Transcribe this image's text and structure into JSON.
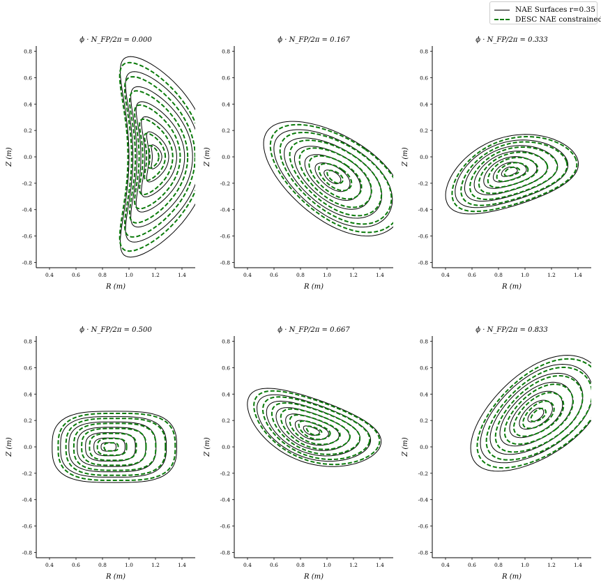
{
  "legend": {
    "placement": "top-right",
    "items": [
      {
        "label": "NAE Surfaces r=0.35",
        "color": "#000000",
        "style": "solid"
      },
      {
        "label": "DESC NAE constrained",
        "color": "#007a00",
        "style": "dashed"
      }
    ]
  },
  "chart_data": [
    {
      "type": "line",
      "title": "ϕ · N_FP/2π = 0.000",
      "phi": 0.0,
      "xlabel": "R (m)",
      "ylabel": "Z (m)",
      "xlim": [
        0.3,
        1.5
      ],
      "ylim": [
        -0.84,
        0.84
      ],
      "xticks": [
        "0.4",
        "0.6",
        "0.8",
        "1.0",
        "1.2",
        "1.4"
      ],
      "yticks": [
        "-0.8",
        "-0.6",
        "-0.4",
        "-0.2",
        "0.0",
        "0.2",
        "0.4",
        "0.6",
        "0.8"
      ],
      "grid": false
    },
    {
      "type": "line",
      "title": "ϕ · N_FP/2π = 0.167",
      "phi": 0.167,
      "xlabel": "R (m)",
      "ylabel": "Z (m)",
      "xlim": [
        0.3,
        1.5
      ],
      "ylim": [
        -0.84,
        0.84
      ],
      "xticks": [
        "0.4",
        "0.6",
        "0.8",
        "1.0",
        "1.2",
        "1.4"
      ],
      "yticks": [
        "-0.8",
        "-0.6",
        "-0.4",
        "-0.2",
        "0.0",
        "0.2",
        "0.4",
        "0.6",
        "0.8"
      ],
      "grid": false
    },
    {
      "type": "line",
      "title": "ϕ · N_FP/2π = 0.333",
      "phi": 0.333,
      "xlabel": "R (m)",
      "ylabel": "Z (m)",
      "xlim": [
        0.3,
        1.5
      ],
      "ylim": [
        -0.84,
        0.84
      ],
      "xticks": [
        "0.4",
        "0.6",
        "0.8",
        "1.0",
        "1.2",
        "1.4"
      ],
      "yticks": [
        "-0.8",
        "-0.6",
        "-0.4",
        "-0.2",
        "0.0",
        "0.2",
        "0.4",
        "0.6",
        "0.8"
      ],
      "grid": false
    },
    {
      "type": "line",
      "title": "ϕ · N_FP/2π = 0.500",
      "phi": 0.5,
      "xlabel": "R (m)",
      "ylabel": "Z (m)",
      "xlim": [
        0.3,
        1.5
      ],
      "ylim": [
        -0.84,
        0.84
      ],
      "xticks": [
        "0.4",
        "0.6",
        "0.8",
        "1.0",
        "1.2",
        "1.4"
      ],
      "yticks": [
        "-0.8",
        "-0.6",
        "-0.4",
        "-0.2",
        "0.0",
        "0.2",
        "0.4",
        "0.6",
        "0.8"
      ],
      "grid": false
    },
    {
      "type": "line",
      "title": "ϕ · N_FP/2π = 0.667",
      "phi": 0.667,
      "xlabel": "R (m)",
      "ylabel": "Z (m)",
      "xlim": [
        0.3,
        1.5
      ],
      "ylim": [
        -0.84,
        0.84
      ],
      "xticks": [
        "0.4",
        "0.6",
        "0.8",
        "1.0",
        "1.2",
        "1.4"
      ],
      "yticks": [
        "-0.8",
        "-0.6",
        "-0.4",
        "-0.2",
        "0.0",
        "0.2",
        "0.4",
        "0.6",
        "0.8"
      ],
      "grid": false
    },
    {
      "type": "line",
      "title": "ϕ · N_FP/2π = 0.833",
      "phi": 0.833,
      "xlabel": "R (m)",
      "ylabel": "Z (m)",
      "xlim": [
        0.3,
        1.5
      ],
      "ylim": [
        -0.84,
        0.84
      ],
      "xticks": [
        "0.4",
        "0.6",
        "0.8",
        "1.0",
        "1.2",
        "1.4"
      ],
      "yticks": [
        "-0.8",
        "-0.6",
        "-0.4",
        "-0.2",
        "0.0",
        "0.2",
        "0.4",
        "0.6",
        "0.8"
      ],
      "grid": false
    }
  ]
}
